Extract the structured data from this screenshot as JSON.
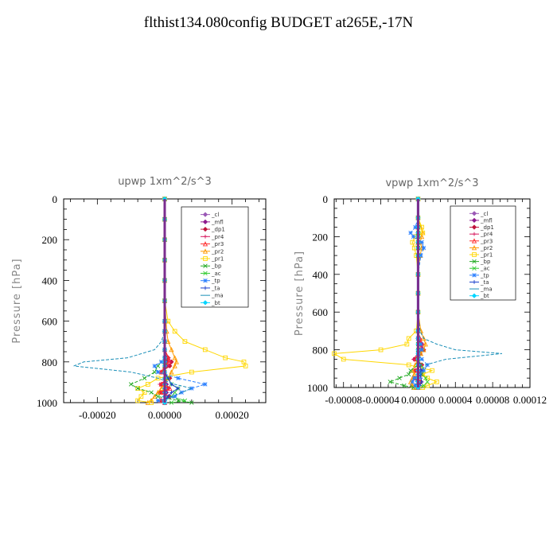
{
  "page": {
    "title": "flthist134.080config  BUDGET at265E,-17N"
  },
  "legend_entries": [
    {
      "name": "_cl",
      "color": "#9b59b6",
      "marker": "diamond"
    },
    {
      "name": "_mfl",
      "color": "#8e1a8e",
      "marker": "diamond"
    },
    {
      "name": "_dp1",
      "color": "#c0143c",
      "marker": "diamond"
    },
    {
      "name": "_pr4",
      "color": "#d81b60",
      "marker": "plus"
    },
    {
      "name": "_pr3",
      "color": "#ff3030",
      "marker": "tri"
    },
    {
      "name": "_pr2",
      "color": "#ff9900",
      "marker": "tri"
    },
    {
      "name": "_pr1",
      "color": "#ffd700",
      "marker": "square"
    },
    {
      "name": "_bp",
      "color": "#22aa22",
      "marker": "x"
    },
    {
      "name": "_ac",
      "color": "#33cc33",
      "marker": "x"
    },
    {
      "name": "_tp",
      "color": "#2a7fff",
      "marker": "star"
    },
    {
      "name": "_ta",
      "color": "#1a3fcc",
      "marker": "plus"
    },
    {
      "name": "_ma",
      "color": "#1a8fb8",
      "marker": "none"
    },
    {
      "name": "_bt",
      "color": "#00d5ff",
      "marker": "diamond"
    }
  ],
  "chart_data": [
    {
      "type": "line",
      "title": "upwp   1xm^2/s^3",
      "ylabel": "Pressure [hPa]",
      "xlim": [
        -0.0003,
        0.0003
      ],
      "ylim": [
        1000,
        0
      ],
      "xticks": [
        -0.0002,
        0.0,
        0.0002
      ],
      "xtick_labels": [
        "-0.00020",
        "0.00000",
        "0.00020"
      ],
      "yticks": [
        0,
        200,
        400,
        600,
        800,
        1000
      ],
      "ytick_labels": [
        "0",
        "200",
        "400",
        "600",
        "800",
        "1000"
      ],
      "y": [
        0,
        100,
        200,
        300,
        400,
        500,
        600,
        650,
        700,
        740,
        780,
        800,
        820,
        850,
        880,
        910,
        930,
        950,
        970,
        990,
        1000
      ],
      "series": [
        {
          "name": "_cl",
          "values": [
            0,
            0,
            0,
            0,
            0,
            0,
            0,
            0,
            0,
            0,
            0,
            0,
            0,
            0,
            0,
            0,
            0,
            0,
            0,
            0,
            0
          ]
        },
        {
          "name": "_mfl",
          "values": [
            0,
            0,
            0,
            0,
            0,
            0,
            0,
            0,
            0,
            0,
            5e-06,
            8e-06,
            5e-06,
            0,
            0,
            5e-06,
            1e-05,
            5e-06,
            0,
            0,
            0
          ]
        },
        {
          "name": "_dp1",
          "values": [
            0,
            0,
            0,
            0,
            0,
            0,
            0,
            0,
            0,
            0,
            1e-05,
            2e-05,
            1.5e-05,
            -1e-05,
            1.5e-05,
            -1e-05,
            1e-05,
            -1.5e-05,
            1.5e-05,
            -1e-05,
            0
          ]
        },
        {
          "name": "_pr4",
          "values": [
            0,
            0,
            0,
            0,
            0,
            0,
            0,
            0,
            0,
            0,
            1.2e-05,
            1.8e-05,
            1e-05,
            -1.2e-05,
            1.2e-05,
            -1.5e-05,
            1.2e-05,
            -1e-05,
            1e-05,
            -1e-05,
            0
          ]
        },
        {
          "name": "_pr3",
          "values": [
            0,
            0,
            0,
            0,
            0,
            0,
            0,
            0,
            0,
            0,
            1e-05,
            1.2e-05,
            0,
            -1e-05,
            1e-05,
            -1e-05,
            1.5e-05,
            -1.2e-05,
            1.2e-05,
            -1.2e-05,
            0
          ]
        },
        {
          "name": "_pr2",
          "values": [
            0,
            0,
            0,
            0,
            0,
            0,
            4e-06,
            6e-06,
            1e-05,
            2e-05,
            3e-05,
            3.5e-05,
            3e-05,
            2e-05,
            1e-05,
            0,
            -1e-05,
            -2e-05,
            -3e-05,
            -4e-05,
            -5e-05
          ]
        },
        {
          "name": "_pr1",
          "values": [
            0,
            0,
            0,
            0,
            0,
            0,
            1e-05,
            3e-05,
            6e-05,
            0.00012,
            0.00018,
            0.000235,
            0.00024,
            8e-05,
            -2e-05,
            -5e-05,
            -8e-05,
            -6e-05,
            -7e-05,
            -8e-05,
            -4e-05
          ]
        },
        {
          "name": "_bp",
          "values": [
            0,
            0,
            0,
            0,
            0,
            0,
            0,
            0,
            0,
            0,
            0,
            -1e-05,
            -2e-05,
            -3e-05,
            -6e-05,
            -0.0001,
            -8e-05,
            -4e-05,
            -2e-05,
            4e-05,
            8e-05
          ]
        },
        {
          "name": "_ac",
          "values": [
            0,
            0,
            0,
            0,
            0,
            0,
            0,
            0,
            0,
            0,
            0,
            0,
            0,
            0,
            1e-05,
            2e-05,
            4e-05,
            3e-05,
            2e-05,
            6e-05,
            2e-05
          ]
        },
        {
          "name": "_tp",
          "values": [
            0,
            0,
            0,
            0,
            0,
            0,
            0,
            0,
            0,
            0,
            0,
            -1e-05,
            -3e-05,
            -2e-05,
            4e-05,
            0.00012,
            8e-05,
            5e-05,
            3e-05,
            -2e-05,
            0
          ]
        },
        {
          "name": "_ta",
          "values": [
            0,
            0,
            0,
            0,
            0,
            0,
            0,
            0,
            0,
            0,
            0,
            0,
            0,
            0,
            1e-05,
            2e-05,
            4e-05,
            2e-05,
            1e-05,
            0,
            0
          ]
        },
        {
          "name": "_ma",
          "values": [
            0,
            0,
            0,
            0,
            0,
            0,
            0,
            0,
            -1e-05,
            -3e-05,
            -0.00011,
            -0.00024,
            -0.00027,
            -0.0001,
            -2e-05,
            3e-05,
            8e-05,
            5e-05,
            2e-05,
            0,
            0
          ]
        },
        {
          "name": "_bt",
          "values": [
            0,
            0,
            0,
            0,
            0,
            0,
            0,
            0,
            0,
            0,
            0,
            0,
            0,
            0,
            0,
            0,
            0,
            0,
            0,
            0,
            0
          ]
        }
      ]
    },
    {
      "type": "line",
      "title": "vpwp   1xm^2/s^3",
      "ylabel": "Pressure [hPa]",
      "xlim": [
        -9e-05,
        0.00012
      ],
      "ylim": [
        1000,
        0
      ],
      "xticks": [
        -8e-05,
        -4e-05,
        0.0,
        4e-05,
        8e-05,
        0.00012
      ],
      "xtick_labels": [
        "-0.00008",
        "-0.00004",
        "0.00000",
        "0.00004",
        "0.00008",
        "0.00012"
      ],
      "yticks": [
        0,
        200,
        400,
        600,
        800,
        1000
      ],
      "ytick_labels": [
        "0",
        "200",
        "400",
        "600",
        "800",
        "1000"
      ],
      "y": [
        0,
        100,
        150,
        180,
        200,
        230,
        260,
        300,
        400,
        500,
        600,
        700,
        740,
        770,
        800,
        820,
        850,
        880,
        910,
        930,
        950,
        970,
        990,
        1000
      ],
      "series": [
        {
          "name": "_cl",
          "values": [
            0,
            0,
            0,
            0,
            0,
            0,
            0,
            0,
            0,
            0,
            0,
            0,
            0,
            0,
            0,
            0,
            0,
            0,
            0,
            0,
            0,
            0,
            0,
            0
          ]
        },
        {
          "name": "_mfl",
          "values": [
            0,
            0,
            0,
            0,
            0,
            0,
            0,
            0,
            0,
            0,
            0,
            0,
            0,
            3e-06,
            4e-06,
            2e-06,
            0,
            2e-06,
            3e-06,
            2e-06,
            0,
            0,
            0,
            0
          ]
        },
        {
          "name": "_dp1",
          "values": [
            0,
            0,
            0,
            0,
            0,
            0,
            0,
            0,
            0,
            0,
            0,
            0,
            0,
            4e-06,
            6e-06,
            2e-06,
            -4e-06,
            4e-06,
            -3e-06,
            4e-06,
            -4e-06,
            3e-06,
            -2e-06,
            0
          ]
        },
        {
          "name": "_pr4",
          "values": [
            0,
            0,
            0,
            0,
            0,
            0,
            0,
            0,
            0,
            0,
            0,
            0,
            2e-06,
            5e-06,
            4e-06,
            0,
            -5e-06,
            4e-06,
            -4e-06,
            3e-06,
            -3e-06,
            4e-06,
            -3e-06,
            0
          ]
        },
        {
          "name": "_pr3",
          "values": [
            0,
            0,
            0,
            0,
            0,
            0,
            0,
            0,
            0,
            0,
            0,
            0,
            2e-06,
            3e-06,
            2e-06,
            0,
            -2e-06,
            3e-06,
            -3e-06,
            2e-06,
            -2e-06,
            2e-06,
            -2e-06,
            0
          ]
        },
        {
          "name": "_pr2",
          "values": [
            0,
            0,
            3e-06,
            5e-06,
            4e-06,
            2e-06,
            4e-06,
            2e-06,
            0,
            0,
            0,
            3e-06,
            6e-06,
            8e-06,
            6e-06,
            3e-06,
            0,
            -3e-06,
            -6e-06,
            -4e-06,
            -6e-06,
            -8e-06,
            -6e-06,
            -4e-06
          ]
        },
        {
          "name": "_pr1",
          "values": [
            0,
            0,
            4e-06,
            5e-06,
            -3e-06,
            -6e-06,
            -4e-06,
            -2e-06,
            0,
            0,
            0,
            -2e-06,
            -1e-05,
            -1.2e-05,
            -4e-05,
            -9e-05,
            -8e-05,
            -1e-05,
            1.5e-05,
            5e-06,
            1e-05,
            2e-05,
            1e-05,
            5e-06
          ]
        },
        {
          "name": "_bp",
          "values": [
            0,
            0,
            0,
            0,
            0,
            0,
            0,
            0,
            0,
            0,
            0,
            0,
            0,
            0,
            0,
            0,
            0,
            0,
            -8e-06,
            -1e-05,
            -2e-05,
            -3e-05,
            -1.5e-05,
            -5e-06
          ]
        },
        {
          "name": "_ac",
          "values": [
            0,
            0,
            0,
            0,
            0,
            0,
            0,
            0,
            0,
            0,
            0,
            0,
            0,
            0,
            0,
            0,
            0,
            3e-06,
            6e-06,
            4e-06,
            8e-06,
            1e-05,
            6e-06,
            0
          ]
        },
        {
          "name": "_tp",
          "values": [
            0,
            0,
            -3e-06,
            -8e-06,
            -5e-06,
            4e-06,
            6e-06,
            3e-06,
            0,
            0,
            0,
            0,
            0,
            3e-06,
            4e-06,
            0,
            4e-06,
            1e-05,
            6e-06,
            2e-06,
            -4e-06,
            -6e-06,
            -3e-06,
            0
          ]
        },
        {
          "name": "_ta",
          "values": [
            0,
            0,
            0,
            0,
            0,
            0,
            0,
            0,
            0,
            0,
            0,
            0,
            0,
            0,
            0,
            0,
            0,
            2e-06,
            3e-06,
            2e-06,
            3e-06,
            4e-06,
            2e-06,
            0
          ]
        },
        {
          "name": "_ma",
          "values": [
            0,
            0,
            0,
            0,
            0,
            0,
            0,
            0,
            0,
            0,
            0,
            2e-06,
            6e-06,
            2e-05,
            4e-05,
            9e-05,
            3e-05,
            8e-06,
            4e-06,
            2e-06,
            0,
            -3e-06,
            -2e-06,
            0
          ]
        },
        {
          "name": "_bt",
          "values": [
            0,
            0,
            0,
            0,
            0,
            0,
            0,
            0,
            0,
            0,
            0,
            0,
            0,
            0,
            0,
            0,
            0,
            0,
            0,
            0,
            0,
            0,
            0,
            0
          ]
        }
      ]
    }
  ]
}
